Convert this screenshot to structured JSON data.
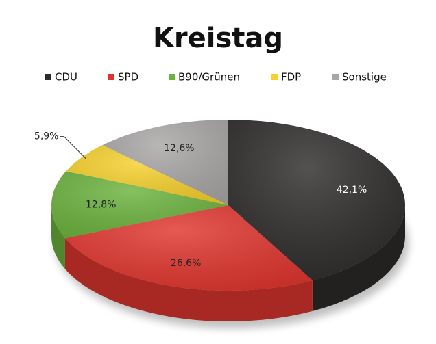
{
  "chart_data": {
    "type": "pie",
    "title": "Kreistag",
    "categories": [
      "CDU",
      "SPD",
      "B90/Grünen",
      "FDP",
      "Sonstige"
    ],
    "values": [
      42.1,
      26.6,
      12.8,
      5.9,
      12.6
    ],
    "value_labels": [
      "42,1%",
      "26,6%",
      "12,8%",
      "5,9%",
      "12,6%"
    ],
    "colors": [
      "#2e2b2b",
      "#e0352e",
      "#6cb33e",
      "#f6d02c",
      "#a9a6a6"
    ],
    "legend": "top"
  }
}
